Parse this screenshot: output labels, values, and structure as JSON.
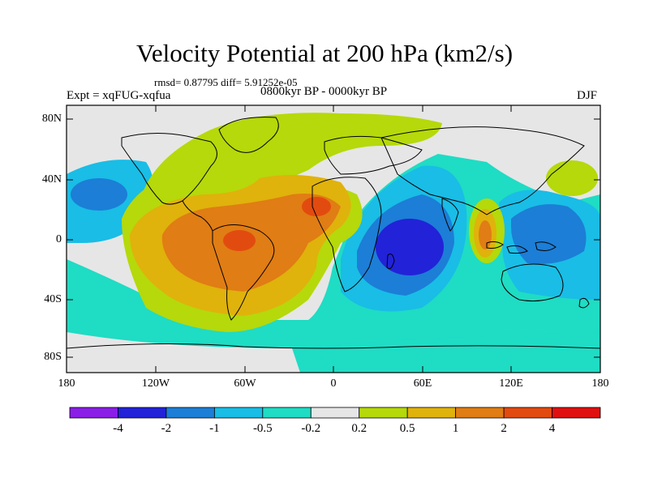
{
  "title": "Velocity Potential at 200 hPa (km2/s)",
  "stats": "rmsd= 0.87795 diff= 5.91252e-05",
  "periods": "0800kyr BP - 0000kyr BP",
  "experiment": "Expt = xqFUG-xqfua",
  "season": "DJF",
  "lat_labels": [
    "80N",
    "40N",
    "0",
    "40S",
    "80S"
  ],
  "lon_labels": [
    "180",
    "120W",
    "60W",
    "0",
    "60E",
    "120E",
    "180"
  ],
  "colorbar": {
    "labels": [
      "-4",
      "-2",
      "-1",
      "-0.5",
      "-0.2",
      "0.2",
      "0.5",
      "1",
      "2",
      "4"
    ],
    "colors": [
      "#8a1ee6",
      "#2222d8",
      "#1c7ed6",
      "#19bde6",
      "#1fdcc4",
      "#e6e6e6",
      "#b5d90a",
      "#e0b20c",
      "#e07d14",
      "#e24b0f",
      "#e01010"
    ]
  }
}
